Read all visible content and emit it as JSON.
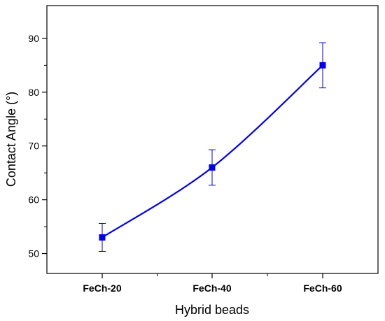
{
  "chart_data": {
    "type": "line",
    "title": "",
    "xlabel": "Hybrid beads",
    "ylabel": "Contact Angle (°)",
    "categories": [
      "FeCh-20",
      "FeCh-40",
      "FeCh-60"
    ],
    "series": [
      {
        "values": [
          53,
          66,
          85
        ],
        "error": [
          2.6,
          3.3,
          4.2
        ],
        "color": "#0000ee",
        "marker": "square"
      }
    ],
    "yticks": [
      50,
      60,
      70,
      80,
      90
    ],
    "ylim": [
      46.3,
      96.1
    ],
    "grid": false
  }
}
